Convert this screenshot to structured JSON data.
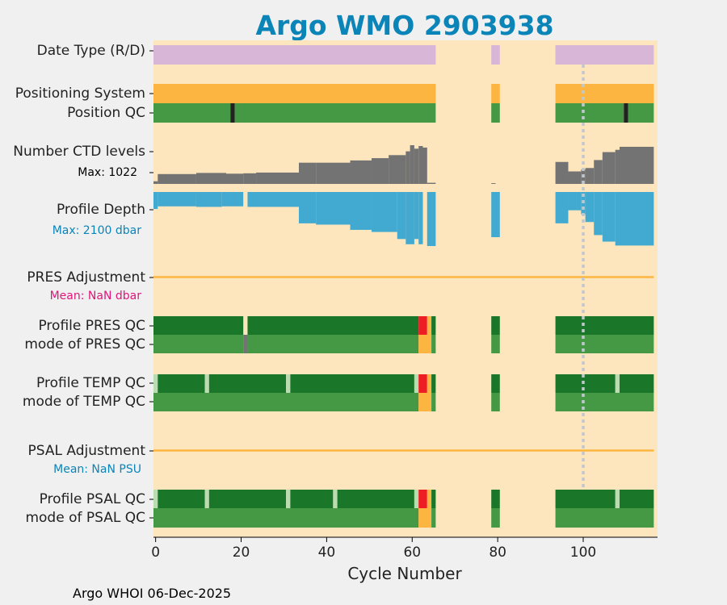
{
  "colors": {
    "background": "#f0f0f0",
    "axes_bg": "#fde6bd",
    "title": "#0b84b8",
    "date_type": "#d8b6d8",
    "positioning": "#fdb541",
    "qc_good": "#1a772a",
    "qc_mode": "#459945",
    "qc_light": "#b9dcb0",
    "qc_bad": "#ee1d24",
    "qc_probable": "#fdb541",
    "gray": "#737373",
    "dark": "#222222",
    "depth": "#42aad0",
    "adjustment_line": "#fdb541",
    "vline": "#bfc8cf",
    "pres_mean_label": "#e0157a",
    "psal_mean_label": "#0b84b8",
    "depth_max_label": "#0b84b8"
  },
  "footer": "Argo WHOI 06-Dec-2025",
  "chart_data": {
    "type": "bar",
    "title": "Argo WMO 2903938",
    "xlabel": "Cycle Number",
    "ylabel": "",
    "xlim": [
      -0.5,
      117
    ],
    "xticks": [
      0,
      20,
      40,
      60,
      80,
      100
    ],
    "grid": false,
    "vertical_marker_cycle": 100,
    "row_labels": {
      "date_type": "Date Type (R/D)",
      "positioning": "Positioning System",
      "position_qc": "Position QC",
      "ctd_levels": "Number CTD levels",
      "profile_depth": "Profile Depth",
      "pres_adjustment": "PRES Adjustment",
      "profile_pres_qc": "Profile PRES QC",
      "mode_pres_qc": "mode of PRES QC",
      "profile_temp_qc": "Profile TEMP QC",
      "mode_temp_qc": "mode of TEMP QC",
      "psal_adjustment": "PSAL Adjustment",
      "profile_psal_qc": "Profile PSAL QC",
      "mode_psal_qc": "mode of PSAL QC"
    },
    "annotations": {
      "ctd_max": "Max: 1022",
      "depth_max": "Max: 2100 dbar",
      "pres_mean": "Mean:  NaN dbar",
      "psal_mean": "Mean:  NaN PSU"
    },
    "ctd_levels_max": 1022,
    "profile_depth_max": 2100,
    "date_type": [
      [
        0,
        65,
        "D"
      ],
      [
        79,
        80,
        "D"
      ],
      [
        94,
        116,
        "D"
      ]
    ],
    "positioning": [
      [
        0,
        65
      ],
      [
        79,
        80
      ],
      [
        94,
        116
      ]
    ],
    "position_qc": [
      [
        0,
        17,
        "good"
      ],
      [
        18,
        18,
        "bad"
      ],
      [
        19,
        65,
        "good"
      ],
      [
        79,
        80,
        "good"
      ],
      [
        94,
        109,
        "good"
      ],
      [
        110,
        110,
        "bad"
      ],
      [
        111,
        116,
        "good"
      ]
    ],
    "ctd_levels": [
      [
        0,
        0,
        70
      ],
      [
        1,
        9,
        260
      ],
      [
        10,
        16,
        290
      ],
      [
        17,
        20,
        270
      ],
      [
        21,
        23,
        280
      ],
      [
        24,
        33,
        300
      ],
      [
        34,
        37,
        560
      ],
      [
        38,
        45,
        560
      ],
      [
        46,
        50,
        620
      ],
      [
        51,
        54,
        680
      ],
      [
        55,
        58,
        760
      ],
      [
        59,
        59,
        860
      ],
      [
        60,
        60,
        1022
      ],
      [
        61,
        61,
        930
      ],
      [
        62,
        62,
        1000
      ],
      [
        63,
        63,
        960
      ],
      [
        64,
        65,
        30
      ],
      [
        79,
        79,
        20
      ],
      [
        94,
        96,
        580
      ],
      [
        97,
        99,
        330
      ],
      [
        100,
        100,
        380
      ],
      [
        101,
        102,
        420
      ],
      [
        103,
        104,
        630
      ],
      [
        105,
        107,
        840
      ],
      [
        108,
        108,
        900
      ],
      [
        109,
        116,
        980
      ]
    ],
    "profile_depth": [
      [
        0,
        0,
        650
      ],
      [
        1,
        9,
        550
      ],
      [
        10,
        15,
        570
      ],
      [
        16,
        20,
        550
      ],
      [
        22,
        33,
        570
      ],
      [
        34,
        37,
        1200
      ],
      [
        38,
        45,
        1250
      ],
      [
        46,
        50,
        1450
      ],
      [
        51,
        56,
        1530
      ],
      [
        57,
        58,
        1800
      ],
      [
        59,
        60,
        2000
      ],
      [
        61,
        61,
        1800
      ],
      [
        62,
        62,
        2000
      ],
      [
        64,
        65,
        2070
      ],
      [
        79,
        80,
        1730
      ],
      [
        94,
        96,
        1200
      ],
      [
        97,
        99,
        700
      ],
      [
        100,
        100,
        850
      ],
      [
        101,
        102,
        1150
      ],
      [
        103,
        104,
        1650
      ],
      [
        105,
        107,
        1900
      ],
      [
        108,
        116,
        2050
      ]
    ],
    "pres_adjustment_mean": null,
    "psal_adjustment_mean": null,
    "profile_pres_qc": [
      [
        0,
        20,
        "good"
      ],
      [
        22,
        61,
        "good"
      ],
      [
        62,
        63,
        "bad"
      ],
      [
        64,
        64,
        "probable"
      ],
      [
        65,
        65,
        "good"
      ],
      [
        79,
        80,
        "good"
      ],
      [
        94,
        116,
        "good"
      ]
    ],
    "mode_pres_qc": [
      [
        0,
        20,
        "mode"
      ],
      [
        21,
        21,
        "gray"
      ],
      [
        22,
        61,
        "mode"
      ],
      [
        62,
        64,
        "probable"
      ],
      [
        65,
        65,
        "mode"
      ],
      [
        79,
        80,
        "mode"
      ],
      [
        94,
        116,
        "mode"
      ]
    ],
    "profile_temp_qc": [
      [
        0,
        0,
        "light"
      ],
      [
        1,
        11,
        "good"
      ],
      [
        12,
        12,
        "light"
      ],
      [
        13,
        30,
        "good"
      ],
      [
        31,
        31,
        "light"
      ],
      [
        32,
        60,
        "good"
      ],
      [
        61,
        61,
        "light"
      ],
      [
        62,
        63,
        "bad"
      ],
      [
        64,
        64,
        "probable"
      ],
      [
        65,
        65,
        "good"
      ],
      [
        79,
        80,
        "good"
      ],
      [
        94,
        107,
        "good"
      ],
      [
        108,
        108,
        "light"
      ],
      [
        109,
        116,
        "good"
      ]
    ],
    "mode_temp_qc": [
      [
        0,
        61,
        "mode"
      ],
      [
        62,
        64,
        "probable"
      ],
      [
        65,
        65,
        "mode"
      ],
      [
        79,
        80,
        "mode"
      ],
      [
        94,
        116,
        "mode"
      ]
    ],
    "profile_psal_qc": [
      [
        0,
        0,
        "light"
      ],
      [
        1,
        11,
        "good"
      ],
      [
        12,
        12,
        "light"
      ],
      [
        13,
        30,
        "good"
      ],
      [
        31,
        31,
        "light"
      ],
      [
        32,
        41,
        "good"
      ],
      [
        42,
        42,
        "light"
      ],
      [
        43,
        60,
        "good"
      ],
      [
        61,
        61,
        "light"
      ],
      [
        62,
        63,
        "bad"
      ],
      [
        64,
        64,
        "probable"
      ],
      [
        65,
        65,
        "good"
      ],
      [
        79,
        80,
        "good"
      ],
      [
        94,
        107,
        "good"
      ],
      [
        108,
        108,
        "light"
      ],
      [
        109,
        116,
        "good"
      ]
    ],
    "mode_psal_qc": [
      [
        0,
        61,
        "mode"
      ],
      [
        62,
        64,
        "probable"
      ],
      [
        65,
        65,
        "mode"
      ],
      [
        79,
        80,
        "mode"
      ],
      [
        94,
        116,
        "mode"
      ]
    ]
  }
}
